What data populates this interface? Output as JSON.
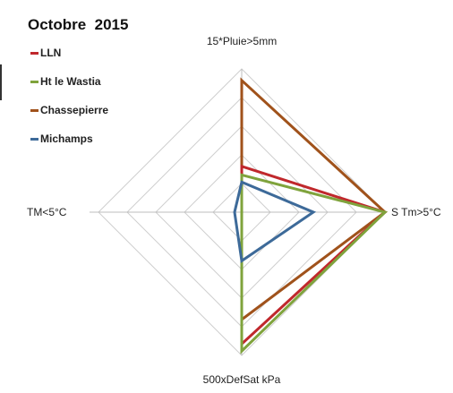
{
  "chart_data": {
    "type": "radar",
    "title": "Octobre  2015",
    "axes": [
      "15*Pluie>5mm",
      "S Tm>5°C",
      "500xDefSat kPa",
      "TM<5°C"
    ],
    "rmax": 5,
    "gridlines": 5,
    "series": [
      {
        "name": "LLN",
        "color": "#c0282c",
        "values": [
          1.6,
          5.0,
          4.6,
          0.0
        ]
      },
      {
        "name": "Ht le Wastia",
        "color": "#7fa33c",
        "values": [
          1.3,
          5.0,
          4.85,
          0.0
        ]
      },
      {
        "name": "Chassepierre",
        "color": "#a0521b",
        "values": [
          4.6,
          5.0,
          3.75,
          0.0
        ]
      },
      {
        "name": "Michamps",
        "color": "#3d6a99",
        "values": [
          1.05,
          2.5,
          1.7,
          0.25
        ]
      }
    ]
  }
}
